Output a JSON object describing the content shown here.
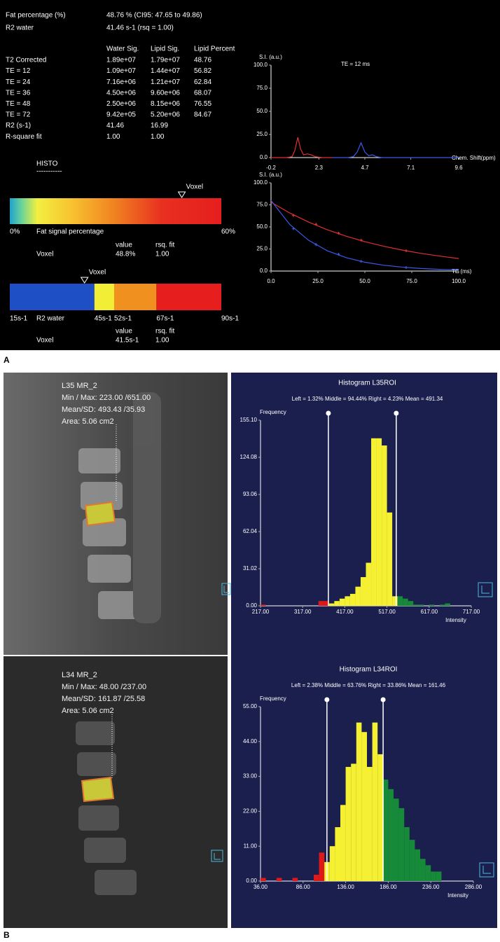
{
  "panel_a": {
    "label": "A",
    "summary": [
      [
        "Fat percentage (%)",
        "48.76 % (CI95: 47.65 to 49.86)"
      ],
      [
        "R2 water",
        "41.46 s-1 (rsq = 1.00)"
      ]
    ],
    "table": {
      "header": [
        "Water Sig.",
        "Lipid Sig.",
        "Lipid Percent"
      ],
      "rows": [
        [
          "T2 Corrected",
          "1.89e+07",
          "1.79e+07",
          "48.76"
        ],
        [
          "TE = 12",
          "1.09e+07",
          "1.44e+07",
          "56.82"
        ],
        [
          "TE = 24",
          "7.16e+06",
          "1.21e+07",
          "62.84"
        ],
        [
          "TE = 36",
          "4.50e+06",
          "9.60e+06",
          "68.07"
        ],
        [
          "TE = 48",
          "2.50e+06",
          "8.15e+06",
          "76.55"
        ],
        [
          "TE = 72",
          "9.42e+05",
          "5.20e+06",
          "84.67"
        ],
        [
          "R2 (s-1)",
          "41.46",
          "16.99"
        ],
        [
          "R-square fit",
          "1.00",
          "1.00"
        ]
      ]
    },
    "histo": "HISTO",
    "histo_rule": "-----------",
    "fat_bar": {
      "title": "Fat signal percentage",
      "ticks": [
        {
          "value": 0,
          "label": "0%"
        },
        {
          "value": 60,
          "label": "60%"
        }
      ],
      "marker": {
        "label": "Voxel",
        "value": 48.8
      },
      "readout": {
        "headers": [
          "value",
          "rsq. fit"
        ],
        "row": [
          "Voxel",
          "48.8%",
          "1.00"
        ]
      }
    },
    "r2_bar": {
      "title": "R2 water",
      "ticks": [
        {
          "value": 15,
          "label": "15s-1"
        },
        {
          "value": 45,
          "label": "45s-1"
        },
        {
          "value": 52,
          "label": "52s-1"
        },
        {
          "value": 67,
          "label": "67s-1"
        },
        {
          "value": 90,
          "label": "90s-1"
        }
      ],
      "segment_colors": [
        "#1e4fc4",
        "#f2ee35",
        "#f0901e",
        "#e61e1e"
      ],
      "marker": {
        "label": "Voxel",
        "value": 41.5
      },
      "readout": {
        "headers": [
          "value",
          "rsq. fit"
        ],
        "row": [
          "Voxel",
          "41.5s-1",
          "1.00"
        ]
      }
    }
  },
  "panel_b": {
    "label": "B",
    "images": [
      {
        "lines": [
          "L35 MR_2",
          "Min / Max: 223.00 /651.00",
          "Mean/SD: 493.43 /35.93",
          "Area: 5.06 cm2"
        ]
      },
      {
        "lines": [
          "L34 MR_2",
          "Min / Max: 48.00 /237.00",
          "Mean/SD: 161.87 /25.58",
          "Area: 5.06 cm2"
        ]
      }
    ]
  },
  "chart_data": [
    {
      "type": "line",
      "title": "TE = 12 ms",
      "y_label": "S.I. (a.u.)",
      "x_label": "Chem. Shift(ppm)",
      "xlim": [
        -0.2,
        9.6
      ],
      "xticks": [
        -0.2,
        2.3,
        4.7,
        7.1,
        9.6
      ],
      "ylim": [
        0,
        100
      ],
      "yticks": [
        {
          "value": 0,
          "label": "0.0"
        },
        {
          "value": 25,
          "label": "25.0"
        },
        {
          "value": 50,
          "label": "50.0"
        },
        {
          "value": 75,
          "label": "75.0"
        },
        {
          "value": 100,
          "label": "100.0"
        }
      ],
      "series": [
        {
          "color": "#e03030",
          "x": [
            -0.2,
            0.6,
            0.9,
            1.05,
            1.2,
            1.35,
            1.5,
            1.7,
            1.9,
            2.1,
            2.5,
            3.0
          ],
          "values": [
            0,
            0,
            1,
            8,
            22,
            9,
            3,
            4,
            3,
            1,
            0,
            0
          ]
        },
        {
          "color": "#3a5ae8",
          "x": [
            3.0,
            3.8,
            4.1,
            4.3,
            4.5,
            4.7,
            4.9,
            5.1,
            5.3,
            5.6,
            6.5,
            9.6
          ],
          "values": [
            0,
            0,
            1,
            6,
            16,
            6,
            2,
            3,
            1,
            0,
            0,
            0
          ]
        }
      ]
    },
    {
      "type": "scatter",
      "y_label": "S.I. (a.u.)",
      "x_label": "TE (ms)",
      "xlim": [
        0,
        100
      ],
      "xticks": [
        {
          "value": 0,
          "label": "0.0"
        },
        {
          "value": 25,
          "label": "25.0"
        },
        {
          "value": 50,
          "label": "50.0"
        },
        {
          "value": 75,
          "label": "75.0"
        },
        {
          "value": 100,
          "label": "100.0"
        }
      ],
      "ylim": [
        0,
        100
      ],
      "yticks": [
        {
          "value": 0,
          "label": "0.0"
        },
        {
          "value": 25,
          "label": "25.0"
        },
        {
          "value": 50,
          "label": "50.0"
        },
        {
          "value": 75,
          "label": "75.0"
        },
        {
          "value": 100,
          "label": "100.0"
        }
      ],
      "series": [
        {
          "color": "#e03030",
          "x": [
            12,
            24,
            36,
            48,
            72
          ],
          "values": [
            63,
            53,
            43,
            35,
            23
          ]
        },
        {
          "color": "#3a5ae8",
          "x": [
            12,
            24,
            36,
            48,
            72
          ],
          "values": [
            48,
            30,
            19,
            11,
            4
          ]
        }
      ],
      "fits": [
        {
          "color": "#e03030",
          "x": [
            0,
            10,
            20,
            30,
            40,
            50,
            60,
            70,
            80,
            90,
            100
          ],
          "values": [
            78,
            65.8,
            55.5,
            46.8,
            39.5,
            33.3,
            28.1,
            23.7,
            20,
            16.9,
            14.2
          ]
        },
        {
          "color": "#3a5ae8",
          "x": [
            0,
            10,
            20,
            30,
            40,
            50,
            60,
            70,
            80,
            90,
            100
          ],
          "values": [
            80,
            52.8,
            34.9,
            23,
            15.2,
            10,
            6.6,
            4.4,
            2.9,
            1.9,
            1.3
          ]
        }
      ]
    },
    {
      "type": "histogram",
      "title": "Histogram L35ROI",
      "subtitle": "Left = 1.32% Middle = 94.44% Right = 4.23% Mean = 491.34",
      "y_label": "Frequency",
      "x_label": "Intensity",
      "bins": [
        217,
        229.5,
        242,
        254.5,
        267,
        279.5,
        292,
        304.5,
        317,
        329.5,
        342,
        354.5,
        367,
        379.5,
        392,
        404.5,
        417,
        429.5,
        442,
        454.5,
        467,
        479.5,
        492,
        504.5,
        517,
        529.5,
        542,
        554.5,
        567,
        579.5,
        592,
        604.5,
        617,
        629.5,
        642,
        654.5,
        667,
        679.5,
        692,
        704.5,
        717
      ],
      "counts": [
        1,
        0,
        0,
        0,
        0,
        0,
        0,
        0,
        0,
        0,
        0,
        4,
        4,
        2,
        4,
        6,
        8,
        10,
        16,
        24,
        36,
        140,
        140,
        134,
        78,
        8,
        8,
        6,
        4,
        1,
        1,
        0,
        1,
        0,
        1,
        2,
        0,
        0,
        0,
        0
      ],
      "markers": [
        378,
        539
      ],
      "colors": [
        "#e01818",
        "#f5f032",
        "#178a3a"
      ],
      "xlim": [
        217,
        717
      ],
      "xticks": [
        {
          "value": 217,
          "label": "217.00"
        },
        {
          "value": 317,
          "label": "317.00"
        },
        {
          "value": 417,
          "label": "417.00"
        },
        {
          "value": 517,
          "label": "517.00"
        },
        {
          "value": 617,
          "label": "617.00"
        },
        {
          "value": 717,
          "label": "717.00"
        }
      ],
      "ylim": [
        0,
        155.1
      ],
      "yticks": [
        {
          "value": 0,
          "label": "0.00"
        },
        {
          "value": 31.02,
          "label": "31.02"
        },
        {
          "value": 62.04,
          "label": "62.04"
        },
        {
          "value": 93.06,
          "label": "93.06"
        },
        {
          "value": 124.08,
          "label": "124.08"
        },
        {
          "value": 155.1,
          "label": "155.10"
        }
      ]
    },
    {
      "type": "histogram",
      "title": "Histogram L34ROI",
      "subtitle": "Left = 2.38% Middle = 63.76% Right = 33.86% Mean = 161.46",
      "y_label": "Frequency",
      "x_label": "Intensity",
      "bins": [
        36,
        42.25,
        48.5,
        54.75,
        61,
        67.25,
        73.5,
        79.75,
        86,
        92.25,
        98.5,
        104.75,
        111,
        117.25,
        123.5,
        129.75,
        136,
        142.25,
        148.5,
        154.75,
        161,
        167.25,
        173.5,
        179.75,
        186,
        192.25,
        198.5,
        204.75,
        211,
        217.25,
        223.5,
        229.75,
        236,
        242.25,
        248.5,
        254.75,
        261,
        267.25,
        273.5,
        279.75,
        286
      ],
      "counts": [
        1,
        0,
        0,
        1,
        0,
        0,
        1,
        0,
        0,
        0,
        2,
        9,
        6,
        11,
        17,
        24,
        36,
        37,
        50,
        47,
        36,
        50,
        40,
        32,
        29,
        26,
        23,
        17,
        13,
        10,
        7,
        5,
        3,
        3,
        0,
        0,
        0,
        0,
        0,
        0
      ],
      "markers": [
        114,
        180
      ],
      "colors": [
        "#e01818",
        "#f5f032",
        "#178a3a"
      ],
      "xlim": [
        36,
        286
      ],
      "xticks": [
        {
          "value": 36,
          "label": "36.00"
        },
        {
          "value": 86,
          "label": "86.00"
        },
        {
          "value": 136,
          "label": "136.00"
        },
        {
          "value": 186,
          "label": "186.00"
        },
        {
          "value": 236,
          "label": "236.00"
        },
        {
          "value": 286,
          "label": "286.00"
        }
      ],
      "ylim": [
        0,
        55
      ],
      "yticks": [
        {
          "value": 0,
          "label": "0.00"
        },
        {
          "value": 11,
          "label": "11.00"
        },
        {
          "value": 22,
          "label": "22.00"
        },
        {
          "value": 33,
          "label": "33.00"
        },
        {
          "value": 44,
          "label": "44.00"
        },
        {
          "value": 55,
          "label": "55.00"
        }
      ]
    }
  ]
}
